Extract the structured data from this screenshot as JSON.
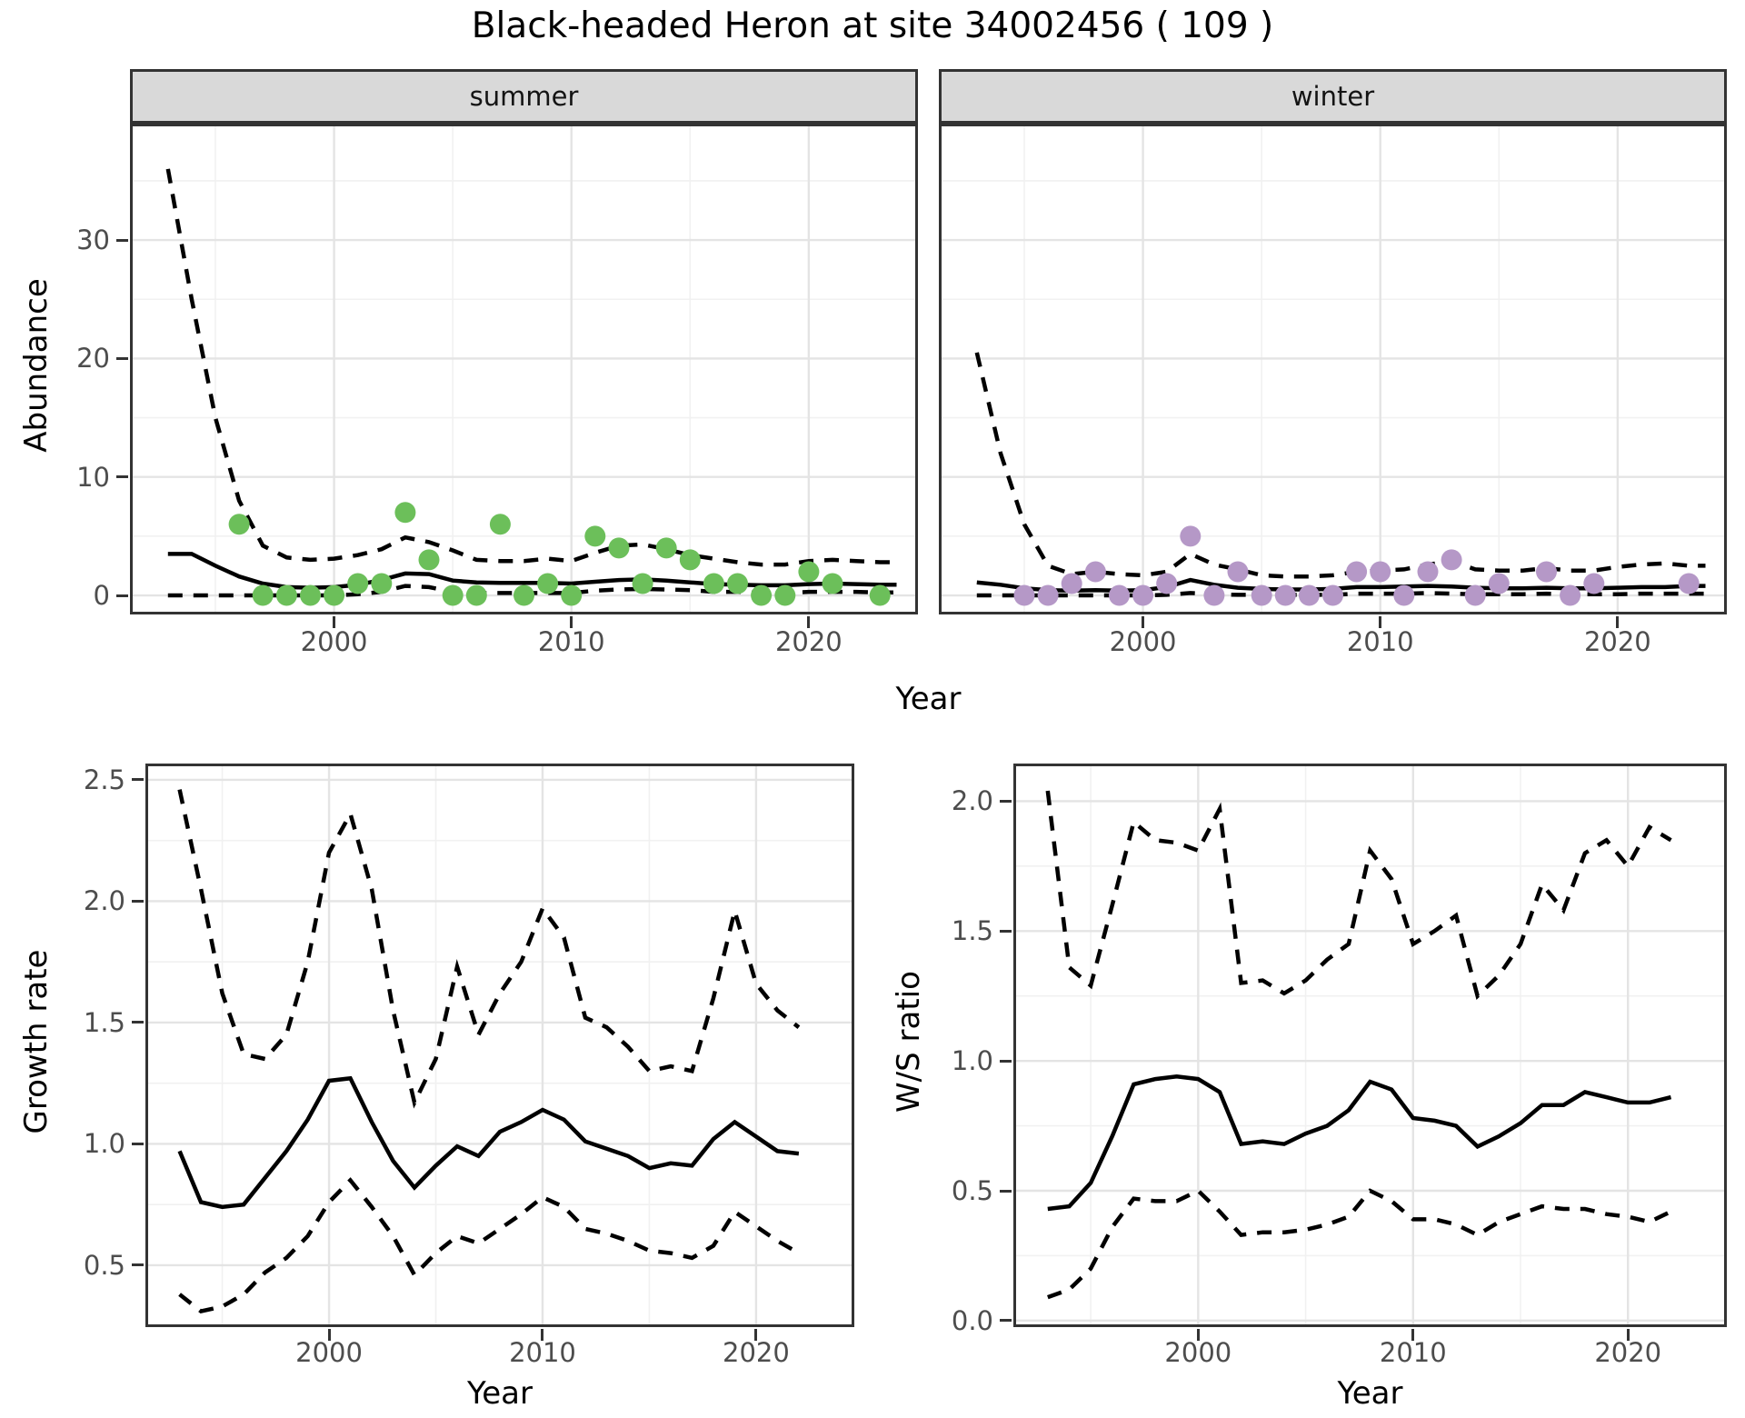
{
  "title": "Black-headed Heron at site 34002456 ( 109 )",
  "chart_data": [
    {
      "id": "abundance",
      "type": "line",
      "ylabel": "Abundance",
      "xlabel": "Year",
      "xlim": [
        1991.4,
        2024.6
      ],
      "ylim": [
        -1.61,
        39.83
      ],
      "grid": true,
      "legend_position": "none",
      "xticks": {
        "values": [
          2000,
          2010,
          2020
        ],
        "labels": [
          "2000",
          "2010",
          "2020"
        ],
        "minor": [
          1995,
          2005,
          2015
        ]
      },
      "yticks": {
        "values": [
          0,
          10,
          20,
          30
        ],
        "labels": [
          "0",
          "10",
          "20",
          "30"
        ],
        "minor": [
          5,
          15,
          25,
          35
        ]
      },
      "line_color": "#000000",
      "facets": [
        {
          "label": "summer",
          "point_color": "#6CBF5A",
          "line_years": [
            1993,
            1994,
            1995,
            1996,
            1997,
            1998,
            1999,
            2000,
            2001,
            2002,
            2003,
            2004,
            2005,
            2006,
            2007,
            2008,
            2009,
            2010,
            2011,
            2012,
            2013,
            2014,
            2015,
            2016,
            2017,
            2018,
            2019,
            2020,
            2021,
            2022,
            2023,
            2023.7
          ],
          "mean": [
            3.5,
            3.5,
            2.5,
            1.6,
            1.0,
            0.7,
            0.65,
            0.7,
            0.9,
            1.3,
            1.85,
            1.8,
            1.25,
            1.1,
            1.05,
            1.05,
            1.05,
            1.0,
            1.15,
            1.3,
            1.35,
            1.25,
            1.1,
            0.95,
            0.9,
            0.85,
            0.85,
            0.95,
            1.0,
            0.95,
            0.9,
            0.9
          ],
          "upper_ci": [
            36,
            25,
            15,
            8,
            4.2,
            3.2,
            3.0,
            3.1,
            3.4,
            3.9,
            4.9,
            4.5,
            3.8,
            3.0,
            2.9,
            2.9,
            3.1,
            2.9,
            3.6,
            4.2,
            4.3,
            3.9,
            3.4,
            3.1,
            2.8,
            2.6,
            2.6,
            2.9,
            3.0,
            2.9,
            2.8,
            2.8
          ],
          "lower_ci": [
            0,
            0,
            0,
            0,
            0,
            0,
            0,
            0,
            0.1,
            0.3,
            0.8,
            0.7,
            0.3,
            0.2,
            0.2,
            0.2,
            0.2,
            0.2,
            0.4,
            0.5,
            0.55,
            0.5,
            0.45,
            0.3,
            0.3,
            0.2,
            0.2,
            0.3,
            0.3,
            0.3,
            0.25,
            0.25
          ],
          "point_years": [
            1996,
            1997,
            1998,
            1999,
            2000,
            2001,
            2002,
            2003,
            2004,
            2005,
            2006,
            2007,
            2008,
            2009,
            2010,
            2011,
            2012,
            2013,
            2014,
            2015,
            2016,
            2017,
            2018,
            2019,
            2020,
            2021,
            2023
          ],
          "point_values": [
            6,
            0,
            0,
            0,
            0,
            1,
            1,
            7,
            3,
            0,
            0,
            6,
            0,
            1,
            0,
            5,
            4,
            1,
            4,
            3,
            1,
            1,
            0,
            0,
            2,
            1,
            0
          ]
        },
        {
          "label": "winter",
          "point_color": "#B598C7",
          "line_years": [
            1993,
            1994,
            1995,
            1996,
            1997,
            1998,
            1999,
            2000,
            2001,
            2002,
            2003,
            2004,
            2005,
            2006,
            2007,
            2008,
            2009,
            2010,
            2011,
            2012,
            2013,
            2014,
            2015,
            2016,
            2017,
            2018,
            2019,
            2020,
            2021,
            2022,
            2023,
            2023.7
          ],
          "mean": [
            1.1,
            0.9,
            0.6,
            0.45,
            0.4,
            0.45,
            0.4,
            0.45,
            0.7,
            1.3,
            0.9,
            0.65,
            0.55,
            0.5,
            0.5,
            0.55,
            0.7,
            0.7,
            0.75,
            0.8,
            0.75,
            0.65,
            0.6,
            0.6,
            0.65,
            0.6,
            0.6,
            0.65,
            0.7,
            0.7,
            0.8,
            0.8
          ],
          "upper_ci": [
            20.5,
            12,
            6,
            2.5,
            1.8,
            2.0,
            1.8,
            1.7,
            2.0,
            3.5,
            2.6,
            2.2,
            1.7,
            1.6,
            1.6,
            1.7,
            2.0,
            2.1,
            2.2,
            2.6,
            2.9,
            2.2,
            2.1,
            2.1,
            2.3,
            2.1,
            2.1,
            2.4,
            2.6,
            2.7,
            2.5,
            2.5
          ],
          "lower_ci": [
            0,
            0,
            0,
            0,
            0,
            0,
            0,
            0,
            0.05,
            0.2,
            0.1,
            0.05,
            0.05,
            0.05,
            0.05,
            0.05,
            0.15,
            0.15,
            0.15,
            0.2,
            0.15,
            0.1,
            0.1,
            0.1,
            0.15,
            0.1,
            0.1,
            0.1,
            0.15,
            0.15,
            0.15,
            0.15
          ],
          "point_years": [
            1995,
            1996,
            1997,
            1998,
            1999,
            2000,
            2001,
            2002,
            2003,
            2004,
            2005,
            2006,
            2007,
            2008,
            2009,
            2010,
            2011,
            2012,
            2013,
            2014,
            2015,
            2017,
            2018,
            2019,
            2023
          ],
          "point_values": [
            0,
            0,
            1,
            2,
            0,
            0,
            1,
            5,
            0,
            2,
            0,
            0,
            0,
            0,
            2,
            2,
            0,
            2,
            3,
            0,
            1,
            2,
            0,
            1,
            1
          ]
        }
      ]
    },
    {
      "id": "growth_rate",
      "type": "line",
      "ylabel": "Growth rate",
      "xlabel": "Year",
      "xlim": [
        1991.4,
        2024.6
      ],
      "ylim": [
        0.245,
        2.567
      ],
      "grid": true,
      "xticks": {
        "values": [
          2000,
          2010,
          2020
        ],
        "labels": [
          "2000",
          "2010",
          "2020"
        ],
        "minor": [
          1995,
          2005,
          2015
        ]
      },
      "yticks": {
        "values": [
          0.5,
          1.0,
          1.5,
          2.0,
          2.5
        ],
        "labels": [
          "0.5",
          "1.0",
          "1.5",
          "2.0",
          "2.5"
        ],
        "minor": [
          0.25,
          0.75,
          1.25,
          1.75,
          2.25
        ]
      },
      "line_color": "#000000",
      "years": [
        1993,
        1994,
        1995,
        1996,
        1997,
        1998,
        1999,
        2000,
        2001,
        2002,
        2003,
        2004,
        2005,
        2006,
        2007,
        2008,
        2009,
        2010,
        2011,
        2012,
        2013,
        2014,
        2015,
        2016,
        2017,
        2018,
        2019,
        2020,
        2021,
        2022
      ],
      "mean": [
        0.97,
        0.76,
        0.74,
        0.75,
        0.86,
        0.97,
        1.1,
        1.26,
        1.27,
        1.09,
        0.93,
        0.82,
        0.91,
        0.99,
        0.95,
        1.05,
        1.09,
        1.14,
        1.1,
        1.01,
        0.98,
        0.95,
        0.9,
        0.92,
        0.91,
        1.02,
        1.09,
        1.03,
        0.97,
        0.96
      ],
      "upper_ci": [
        2.46,
        2.05,
        1.62,
        1.37,
        1.35,
        1.45,
        1.75,
        2.2,
        2.36,
        2.05,
        1.55,
        1.17,
        1.35,
        1.73,
        1.45,
        1.62,
        1.75,
        1.97,
        1.85,
        1.52,
        1.48,
        1.4,
        1.3,
        1.32,
        1.3,
        1.6,
        1.96,
        1.66,
        1.55,
        1.48
      ],
      "lower_ci": [
        0.38,
        0.31,
        0.33,
        0.38,
        0.47,
        0.53,
        0.62,
        0.76,
        0.85,
        0.74,
        0.62,
        0.46,
        0.55,
        0.62,
        0.59,
        0.65,
        0.71,
        0.78,
        0.74,
        0.65,
        0.63,
        0.6,
        0.56,
        0.55,
        0.53,
        0.58,
        0.72,
        0.66,
        0.6,
        0.55
      ]
    },
    {
      "id": "ws_ratio",
      "type": "line",
      "ylabel": "W/S ratio",
      "xlabel": "Year",
      "xlim": [
        1991.4,
        2024.6
      ],
      "ylim": [
        -0.025,
        2.145
      ],
      "grid": true,
      "xticks": {
        "values": [
          2000,
          2010,
          2020
        ],
        "labels": [
          "2000",
          "2010",
          "2020"
        ],
        "minor": [
          1995,
          2005,
          2015
        ]
      },
      "yticks": {
        "values": [
          0.0,
          0.5,
          1.0,
          1.5,
          2.0
        ],
        "labels": [
          "0.0",
          "0.5",
          "1.0",
          "1.5",
          "2.0"
        ],
        "minor": [
          0.25,
          0.75,
          1.25,
          1.75
        ]
      },
      "line_color": "#000000",
      "years": [
        1993,
        1994,
        1995,
        1996,
        1997,
        1998,
        1999,
        2000,
        2001,
        2002,
        2003,
        2004,
        2005,
        2006,
        2007,
        2008,
        2009,
        2010,
        2011,
        2012,
        2013,
        2014,
        2015,
        2016,
        2017,
        2018,
        2019,
        2020,
        2021,
        2022
      ],
      "mean": [
        0.43,
        0.44,
        0.53,
        0.71,
        0.91,
        0.93,
        0.94,
        0.93,
        0.88,
        0.68,
        0.69,
        0.68,
        0.72,
        0.75,
        0.81,
        0.92,
        0.89,
        0.78,
        0.77,
        0.75,
        0.67,
        0.71,
        0.76,
        0.83,
        0.83,
        0.88,
        0.86,
        0.84,
        0.84,
        0.86
      ],
      "upper_ci": [
        2.04,
        1.36,
        1.29,
        1.6,
        1.92,
        1.85,
        1.84,
        1.81,
        1.97,
        1.3,
        1.31,
        1.26,
        1.31,
        1.39,
        1.45,
        1.81,
        1.7,
        1.45,
        1.5,
        1.56,
        1.25,
        1.33,
        1.45,
        1.68,
        1.58,
        1.8,
        1.85,
        1.75,
        1.9,
        1.85
      ],
      "lower_ci": [
        0.09,
        0.12,
        0.2,
        0.36,
        0.47,
        0.46,
        0.46,
        0.5,
        0.42,
        0.33,
        0.34,
        0.34,
        0.35,
        0.37,
        0.4,
        0.5,
        0.46,
        0.39,
        0.39,
        0.37,
        0.33,
        0.38,
        0.41,
        0.44,
        0.43,
        0.43,
        0.41,
        0.4,
        0.38,
        0.42
      ]
    }
  ],
  "style": {
    "summer_point_color": "#6CBF5A",
    "winter_point_color": "#B598C7",
    "line_color": "#000000",
    "strip_bg": "#D9D9D9",
    "panel_border": "#333333",
    "grid_major": "#E4E4E4",
    "grid_minor": "#F1F1F1",
    "tick_text": "#4D4D4D"
  }
}
